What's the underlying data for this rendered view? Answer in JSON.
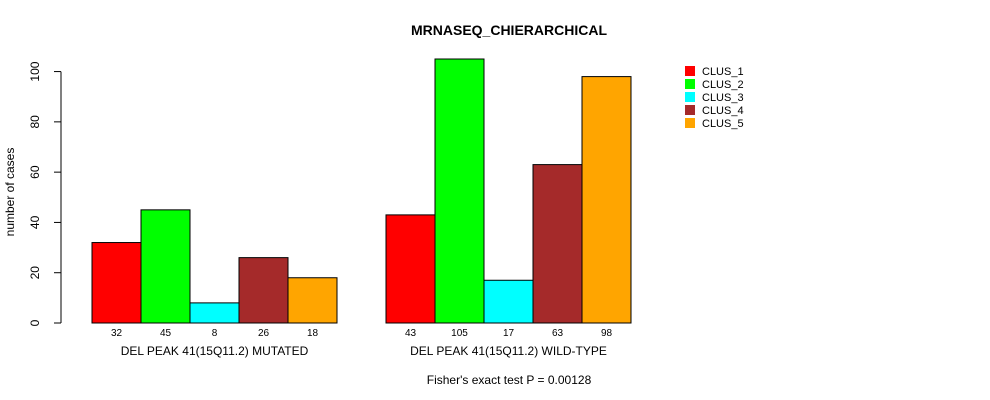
{
  "chart_data": {
    "type": "bar",
    "title": "MRNASEQ_CHIERARCHICAL",
    "ylabel": "number of cases",
    "ylim": [
      0,
      105
    ],
    "yticks": [
      0,
      20,
      40,
      60,
      80,
      100
    ],
    "groups": [
      "DEL PEAK 41(15Q11.2) MUTATED",
      "DEL PEAK 41(15Q11.2) WILD-TYPE"
    ],
    "series": [
      {
        "name": "CLUS_1",
        "color": "#ff0000",
        "values": [
          32,
          43
        ]
      },
      {
        "name": "CLUS_2",
        "color": "#00ff00",
        "values": [
          45,
          105
        ]
      },
      {
        "name": "CLUS_3",
        "color": "#00ffff",
        "values": [
          8,
          17
        ]
      },
      {
        "name": "CLUS_4",
        "color": "#a52a2a",
        "values": [
          26,
          63
        ]
      },
      {
        "name": "CLUS_5",
        "color": "#ffa500",
        "values": [
          18,
          98
        ]
      }
    ],
    "legend_position": "top-right",
    "footnote": "Fisher's exact test P = 0.00128"
  }
}
